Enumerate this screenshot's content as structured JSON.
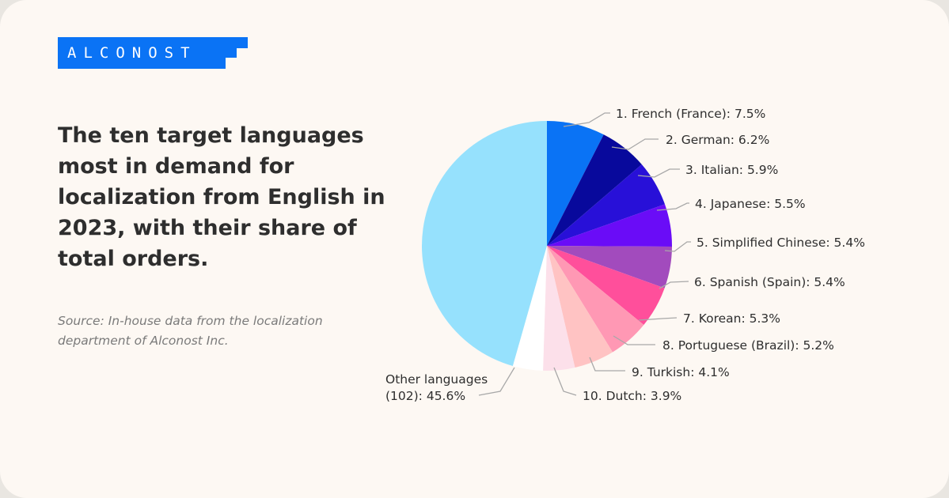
{
  "brand": {
    "logo_text": "ALCONOST",
    "accent": "#0a73f5"
  },
  "title": "The ten target languages most in demand for localization from English in 2023, with their share of total orders.",
  "source": "Source: In-house data from the localization department of Alconost Inc.",
  "chart_data": {
    "type": "pie",
    "start_angle_deg": 0,
    "direction": "clockwise",
    "slices": [
      {
        "label": "1. French (France): 7.5%",
        "value": 7.5,
        "color": "#0a73f5"
      },
      {
        "label": "2. German: 6.2%",
        "value": 6.2,
        "color": "#08099c"
      },
      {
        "label": "3. Italian: 5.9%",
        "value": 5.9,
        "color": "#2810d8"
      },
      {
        "label": "4. Japanese: 5.5%",
        "value": 5.5,
        "color": "#6a0cf7"
      },
      {
        "label": "5. Simplified Chinese: 5.4%",
        "value": 5.4,
        "color": "#a24bbd"
      },
      {
        "label": "6. Spanish (Spain): 5.4%",
        "value": 5.4,
        "color": "#ff4f9b"
      },
      {
        "label": "7. Korean: 5.3%",
        "value": 5.3,
        "color": "#ff98b4"
      },
      {
        "label": "8. Portuguese (Brazil): 5.2%",
        "value": 5.2,
        "color": "#ffc3c3"
      },
      {
        "label": "9. Turkish: 4.1%",
        "value": 4.1,
        "color": "#fce0ea"
      },
      {
        "label": "10. Dutch: 3.9%",
        "value": 3.9,
        "color": "#ffffff"
      },
      {
        "label_lines": [
          "Other languages",
          "(102): 45.6%"
        ],
        "value": 45.6,
        "color": "#96e1fd"
      }
    ]
  }
}
